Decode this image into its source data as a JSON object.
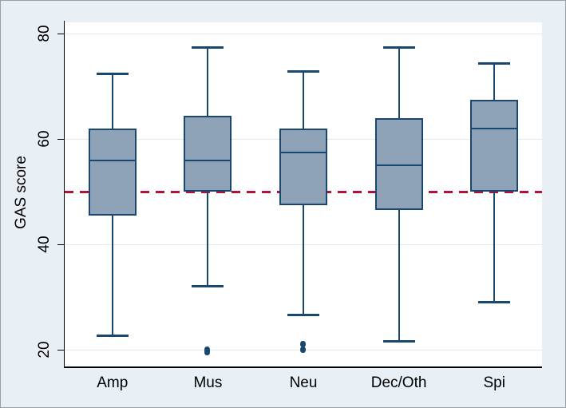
{
  "figure": {
    "background": "#e9f0f5",
    "plot_background": "#ffffff",
    "grid_color": "#e2ebf2",
    "axis_color": "#000000",
    "box_fill": "#8fa3b8",
    "box_border": "#1a476f",
    "refline_color": "#b51237"
  },
  "chart_data": {
    "type": "box",
    "title": "",
    "xlabel": "",
    "ylabel": "GAS score",
    "categories": [
      "Amp",
      "Mus",
      "Neu",
      "Dec/Oth",
      "Spi"
    ],
    "y_ticks": [
      20,
      40,
      60,
      80
    ],
    "ylim": [
      16.8,
      82.2
    ],
    "grid": true,
    "legend": "none",
    "reference_line": {
      "value": 50,
      "style": "dashed",
      "color": "#b51237"
    },
    "series": [
      {
        "category": "Amp",
        "whisker_low": 22.5,
        "q1": 45.5,
        "median": 56,
        "q3": 62,
        "whisker_high": 72.5,
        "outliers": []
      },
      {
        "category": "Mus",
        "whisker_low": 32,
        "q1": 50,
        "median": 56,
        "q3": 64.5,
        "whisker_high": 77.5,
        "outliers": [
          19.5,
          20
        ]
      },
      {
        "category": "Neu",
        "whisker_low": 26.5,
        "q1": 47.5,
        "median": 57.5,
        "q3": 62,
        "whisker_high": 73,
        "outliers": [
          20,
          21
        ]
      },
      {
        "category": "Dec/Oth",
        "whisker_low": 21.5,
        "q1": 46.5,
        "median": 55,
        "q3": 64,
        "whisker_high": 77.5,
        "outliers": []
      },
      {
        "category": "Spi",
        "whisker_low": 29,
        "q1": 50,
        "median": 62,
        "q3": 67.5,
        "whisker_high": 74.5,
        "outliers": []
      }
    ]
  }
}
